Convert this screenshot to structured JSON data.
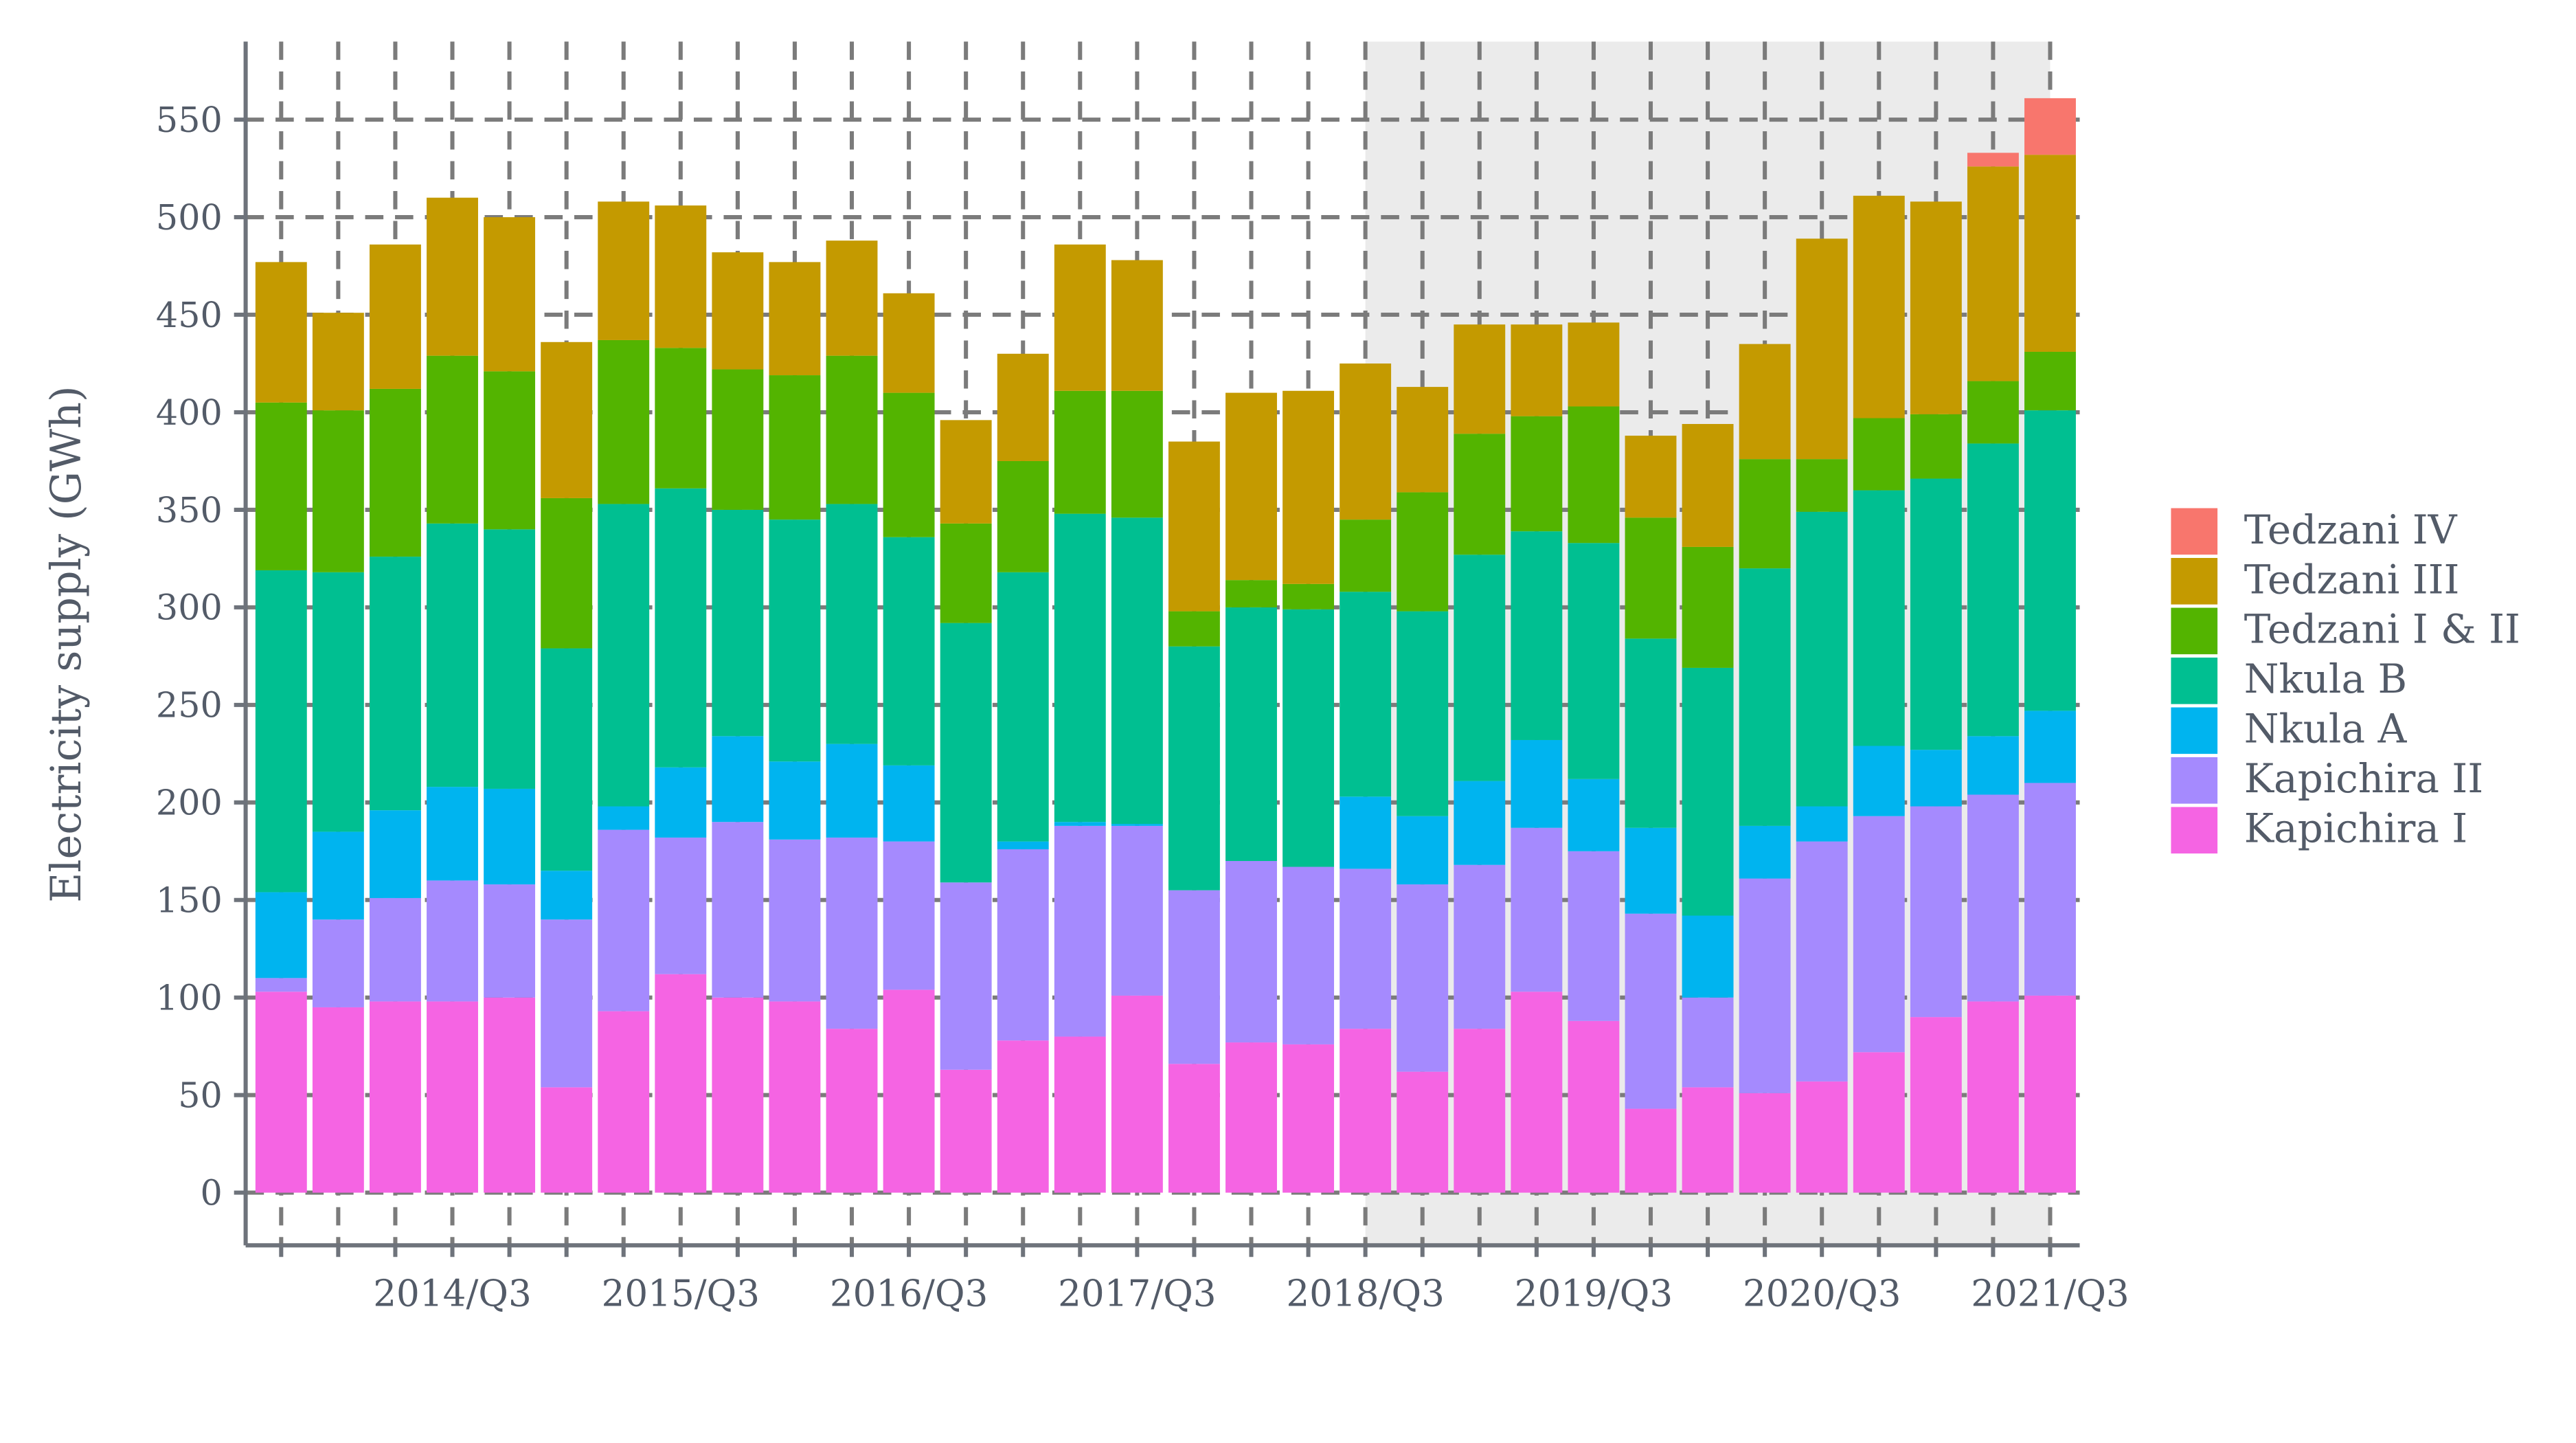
{
  "chart_data": {
    "type": "stacked_bar",
    "y_label": "Electricity supply (GWh)",
    "categories": [
      null,
      null,
      null,
      "2014/Q3",
      null,
      null,
      null,
      "2015/Q3",
      null,
      null,
      null,
      "2016/Q3",
      null,
      null,
      null,
      "2017/Q3",
      null,
      null,
      null,
      "2018/Q3",
      null,
      null,
      null,
      "2019/Q3",
      null,
      null,
      null,
      "2020/Q3",
      null,
      null,
      null,
      "2021/Q3"
    ],
    "shaded": [
      "2018/Q3",
      "2021/Q3"
    ],
    "ylim": [
      -27,
      590
    ],
    "yticks": [
      0,
      50,
      100,
      150,
      200,
      250,
      300,
      350,
      400,
      450,
      500,
      550
    ],
    "grid": true,
    "legend": "right",
    "series": [
      {
        "name": "Kapichira I",
        "color": "#f564e3",
        "values": [
          103,
          95,
          98,
          98,
          100,
          54,
          93,
          112,
          100,
          98,
          84,
          104,
          63,
          78,
          80,
          101,
          66,
          77,
          76,
          84,
          62,
          84,
          103,
          88,
          43,
          54,
          51,
          57,
          72,
          90,
          98,
          101
        ]
      },
      {
        "name": "Kapichira II",
        "color": "#a58afe",
        "values": [
          7,
          45,
          53,
          62,
          58,
          86,
          93,
          70,
          90,
          83,
          98,
          76,
          96,
          98,
          108,
          87,
          89,
          93,
          91,
          82,
          96,
          84,
          84,
          87,
          100,
          46,
          110,
          123,
          121,
          108,
          106,
          109
        ]
      },
      {
        "name": "Nkula A",
        "color": "#00b4ef",
        "values": [
          44,
          45,
          45,
          48,
          49,
          25,
          12,
          36,
          44,
          40,
          48,
          39,
          0,
          4,
          2,
          1,
          0,
          0,
          0,
          37,
          35,
          43,
          45,
          37,
          44,
          42,
          27,
          18,
          36,
          29,
          30,
          37
        ]
      },
      {
        "name": "Nkula B",
        "color": "#00bf91",
        "values": [
          165,
          133,
          130,
          135,
          133,
          114,
          155,
          143,
          116,
          124,
          123,
          117,
          133,
          138,
          158,
          157,
          125,
          130,
          132,
          105,
          105,
          116,
          107,
          121,
          97,
          127,
          132,
          151,
          131,
          139,
          150,
          154
        ]
      },
      {
        "name": "Tedzani I & II",
        "color": "#53b400",
        "values": [
          86,
          83,
          86,
          86,
          81,
          77,
          84,
          72,
          72,
          74,
          76,
          74,
          51,
          57,
          63,
          65,
          18,
          14,
          13,
          37,
          61,
          62,
          59,
          70,
          62,
          62,
          56,
          27,
          37,
          33,
          32,
          30
        ]
      },
      {
        "name": "Tedzani III",
        "color": "#c49a00",
        "values": [
          72,
          50,
          74,
          81,
          79,
          80,
          71,
          73,
          60,
          58,
          59,
          51,
          53,
          55,
          75,
          67,
          87,
          96,
          99,
          80,
          54,
          56,
          47,
          43,
          42,
          63,
          59,
          113,
          114,
          109,
          110,
          101
        ]
      },
      {
        "name": "Tedzani IV",
        "color": "#f8766d",
        "values": [
          0,
          0,
          0,
          0,
          0,
          0,
          0,
          0,
          0,
          0,
          0,
          0,
          0,
          0,
          0,
          0,
          0,
          0,
          0,
          0,
          0,
          0,
          0,
          0,
          0,
          0,
          0,
          0,
          0,
          0,
          7,
          29
        ]
      }
    ]
  }
}
